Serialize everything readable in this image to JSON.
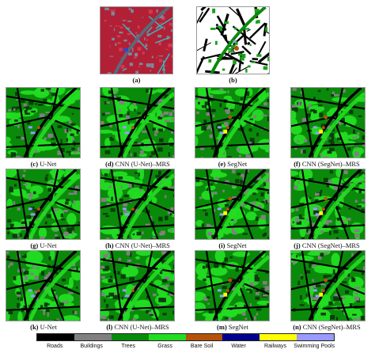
{
  "figure": {
    "top_panels": [
      {
        "id": "a",
        "caption_letter": "(a)",
        "caption_text": "",
        "kind": "cir-image"
      },
      {
        "id": "b",
        "caption_letter": "(b)",
        "caption_text": "",
        "kind": "ground-truth"
      }
    ],
    "grid_panels": [
      {
        "id": "c",
        "caption_letter": "(c)",
        "caption_text": "U-Net"
      },
      {
        "id": "d",
        "caption_letter": "(d)",
        "caption_text": "CNN (U-Net)–MRS"
      },
      {
        "id": "e",
        "caption_letter": "(e)",
        "caption_text": "SegNet"
      },
      {
        "id": "f",
        "caption_letter": "(f)",
        "caption_text": "CNN (SegNet)–MRS"
      },
      {
        "id": "g",
        "caption_letter": "(g)",
        "caption_text": "U-Net"
      },
      {
        "id": "h",
        "caption_letter": "(h)",
        "caption_text": "CNN (U-Net)–MRS"
      },
      {
        "id": "i",
        "caption_letter": "(i)",
        "caption_text": "SegNet"
      },
      {
        "id": "j",
        "caption_letter": "(j)",
        "caption_text": "CNN (SegNet)–MRS"
      },
      {
        "id": "k",
        "caption_letter": "(k)",
        "caption_text": "U-Net"
      },
      {
        "id": "l",
        "caption_letter": "(l)",
        "caption_text": "CNN (U-Net)–MRS"
      },
      {
        "id": "m",
        "caption_letter": "(m)",
        "caption_text": "SegNet"
      },
      {
        "id": "n",
        "caption_letter": "(n)",
        "caption_text": "CNN (SegNet)–MRS"
      }
    ]
  },
  "legend": {
    "items": [
      {
        "label": "Roads",
        "color": "#000000"
      },
      {
        "label": "Buildings",
        "color": "#808080"
      },
      {
        "label": "Trees",
        "color": "#0a8a0a"
      },
      {
        "label": "Grass",
        "color": "#22dd22"
      },
      {
        "label": "Bare Soil",
        "color": "#b4520a"
      },
      {
        "label": "Water",
        "color": "#00008b"
      },
      {
        "label": "Railways",
        "color": "#ffff00"
      },
      {
        "label": "Swimming Pools",
        "color": "#9a9aff"
      }
    ]
  }
}
